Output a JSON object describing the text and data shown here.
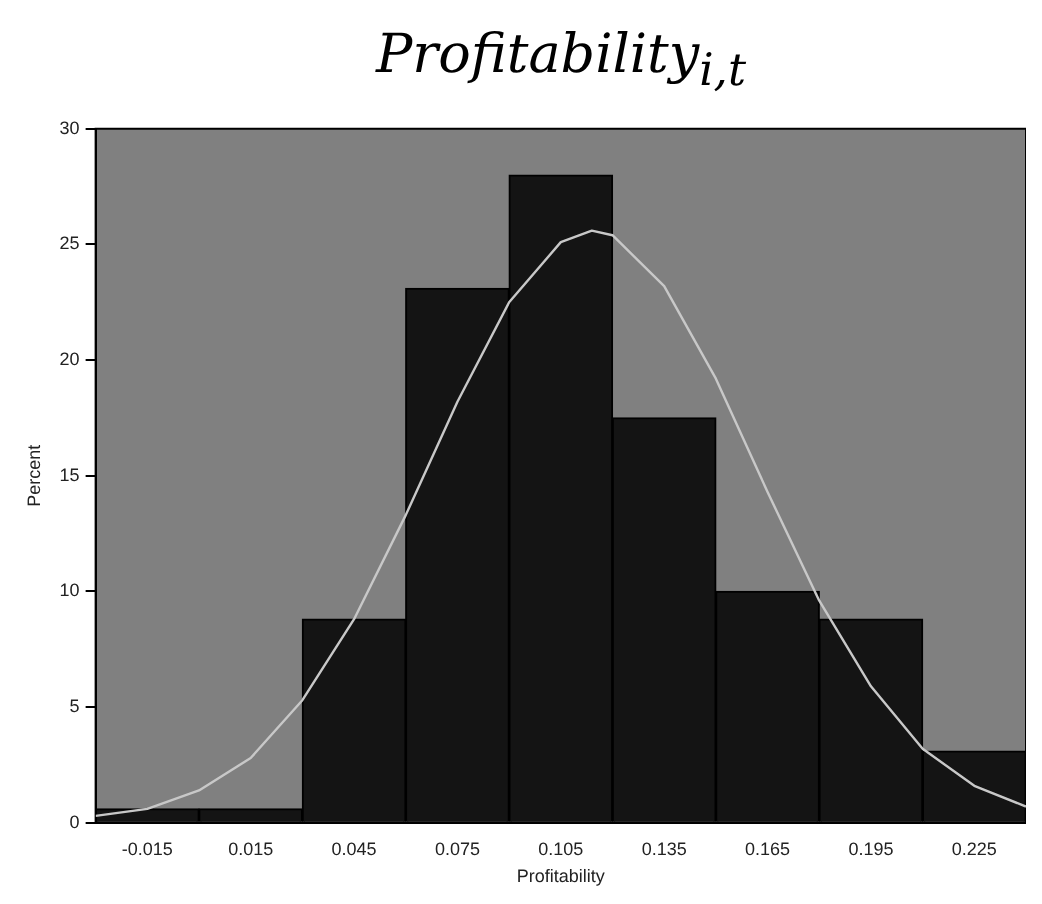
{
  "chart_data": {
    "type": "histogram",
    "title": "Profitability$_{i,t}$",
    "xlabel": "Profitability",
    "ylabel": "Percent",
    "bins": [
      -0.03,
      0,
      0.03,
      0.06,
      0.09,
      0.12,
      0.15,
      0.18,
      0.21,
      0.24
    ],
    "values": [
      0.6,
      0.6,
      8.8,
      23.1,
      28.0,
      17.5,
      10.0,
      8.8,
      3.1
    ],
    "color": "#141414",
    "series": [
      {
        "type": "line",
        "color": "#c8c8c8",
        "x": [
          -0.03,
          -0.015,
          0,
          0.015,
          0.03,
          0.045,
          0.06,
          0.075,
          0.09,
          0.105,
          0.114,
          0.12,
          0.135,
          0.15,
          0.165,
          0.18,
          0.195,
          0.21,
          0.225,
          0.24
        ],
        "values": [
          0.3,
          0.6,
          1.4,
          2.8,
          5.3,
          8.8,
          13.3,
          18.2,
          22.5,
          25.1,
          25.6,
          25.4,
          23.2,
          19.2,
          14.3,
          9.6,
          5.9,
          3.2,
          1.6,
          0.7
        ]
      }
    ],
    "xlim": [
      -0.03,
      0.24
    ],
    "ylim": [
      0,
      30
    ],
    "xticks": [
      -0.015,
      0.015,
      0.045,
      0.075,
      0.105,
      0.135,
      0.165,
      0.195,
      0.225
    ],
    "yticks": [
      0,
      5,
      10,
      15,
      20,
      25,
      30
    ],
    "grid": false,
    "legend": false,
    "marker": "none",
    "line_style": "solid"
  }
}
